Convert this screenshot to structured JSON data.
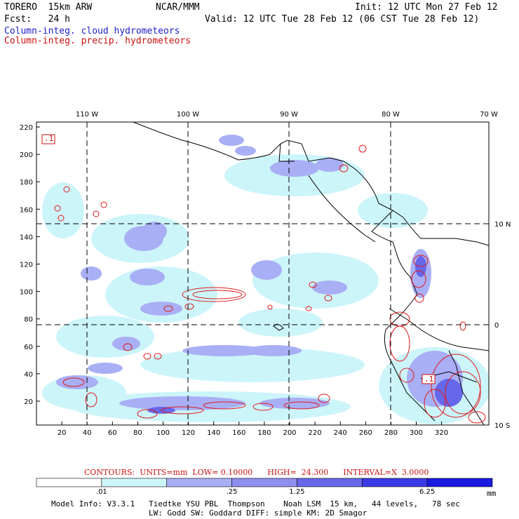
{
  "header": {
    "model": "TORERO  15km ARW",
    "org": "NCAR/MMM",
    "init": "Init: 12 UTC Mon 27 Feb 12",
    "fcst": "Fcst:   24 h",
    "valid": "Valid: 12 UTC Tue 28 Feb 12 (06 CST Tue 28 Feb 12)"
  },
  "fields": {
    "cloud": "Column-integ. cloud hydrometeors",
    "precip": "Column-integ. precip. hydrometeors"
  },
  "axes": {
    "top_labels": [
      "110 W",
      "100 W",
      "90 W",
      "80 W",
      "70 W"
    ],
    "right_labels": [
      "10 N",
      "0",
      "10 S"
    ],
    "bottom_labels": [
      "20",
      "40",
      "60",
      "80",
      "100",
      "120",
      "140",
      "160",
      "180",
      "200",
      "220",
      "240",
      "260",
      "280",
      "300",
      "320"
    ],
    "left_labels": [
      "220",
      "200",
      "180",
      "160",
      "140",
      "120",
      "100",
      "80",
      "60",
      "40",
      "20"
    ]
  },
  "map_labels": {
    "low1": ".1",
    "low2": ".1"
  },
  "contour_info": "CONTOURS:  UNITS=mm  LOW= 0.10000      HIGH=  24.300      INTERVAL=X  3.0000",
  "colorbar": {
    "labels": [
      ".01",
      ".25",
      "1.25",
      "6.25"
    ],
    "unit": "mm",
    "colors": [
      "#ffffff",
      "#ccf5fa",
      "#a9aff5",
      "#8f8fef",
      "#6767ea",
      "#3a3ae6",
      "#1a1ae2"
    ]
  },
  "footer": {
    "line1": "Model Info: V3.3.1   Tiedtke YSU PBL  Thompson    Noah LSM  15 km,   44 levels,   78 sec",
    "line2": "LW: Godd SW: Goddard DIFF: simple KM: 2D Smagor"
  }
}
